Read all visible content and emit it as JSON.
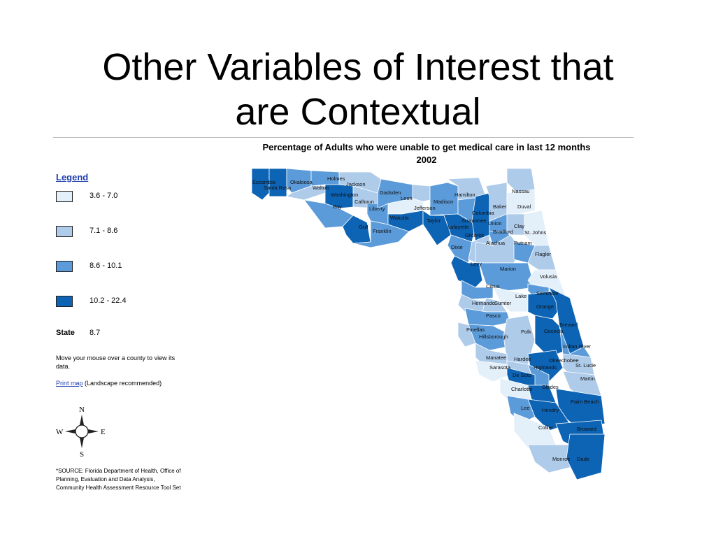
{
  "slide": {
    "title_lines": [
      "Other Variables of Interest that",
      "are Contextual"
    ]
  },
  "map": {
    "title_line1": "Percentage of Adults who were unable to get medical care in last 12 months",
    "title_line2": "2002"
  },
  "legend": {
    "heading": "Legend",
    "items": [
      {
        "label": "3.6 - 7.0",
        "color": "#e3eff9"
      },
      {
        "label": "7.1 - 8.6",
        "color": "#aecbea"
      },
      {
        "label": "8.6 - 10.1",
        "color": "#5b9bd9"
      },
      {
        "label": "10.2 - 22.4",
        "color": "#0d63b4"
      }
    ],
    "state_label": "State",
    "state_value": "8.7"
  },
  "hint": "Move your mouse over a county to view its data.",
  "print": {
    "link": "Print map",
    "note": "(Landscape recommended)"
  },
  "compass": {
    "n": "N",
    "s": "S",
    "e": "E",
    "w": "W"
  },
  "source": {
    "line1": "*SOURCE: Florida Department of Health, Office of",
    "line2": "Planning, Evaluation and Data Analysis,",
    "line3": "Community Health Assessment Resource Tool Set"
  },
  "counties": [
    {
      "name": "Escambia",
      "cls": 3
    },
    {
      "name": "Santa Rosa",
      "cls": 3
    },
    {
      "name": "Okaloosa",
      "cls": 2
    },
    {
      "name": "Walton",
      "cls": 1
    },
    {
      "name": "Holmes",
      "cls": 2
    },
    {
      "name": "Washington",
      "cls": 3
    },
    {
      "name": "Jackson",
      "cls": 1
    },
    {
      "name": "Bay",
      "cls": 2
    },
    {
      "name": "Calhoun",
      "cls": 1
    },
    {
      "name": "Gulf",
      "cls": 3
    },
    {
      "name": "Liberty",
      "cls": 2
    },
    {
      "name": "Gadsden",
      "cls": 2
    },
    {
      "name": "Franklin",
      "cls": 2
    },
    {
      "name": "Leon",
      "cls": 0
    },
    {
      "name": "Wakulla",
      "cls": 3
    },
    {
      "name": "Jefferson",
      "cls": 1
    },
    {
      "name": "Madison",
      "cls": 2
    },
    {
      "name": "Taylor",
      "cls": 3
    },
    {
      "name": "Hamilton",
      "cls": 1
    },
    {
      "name": "Suwannee",
      "cls": 2
    },
    {
      "name": "Lafayette",
      "cls": 3
    },
    {
      "name": "Columbia",
      "cls": 3
    },
    {
      "name": "Dixie",
      "cls": 2
    },
    {
      "name": "Gilchrist",
      "cls": 1
    },
    {
      "name": "Union",
      "cls": 2
    },
    {
      "name": "Baker",
      "cls": 1
    },
    {
      "name": "Bradford",
      "cls": 2
    },
    {
      "name": "Nassau",
      "cls": 1
    },
    {
      "name": "Duval",
      "cls": 0
    },
    {
      "name": "Clay",
      "cls": 1
    },
    {
      "name": "St. Johns",
      "cls": 0
    },
    {
      "name": "Alachua",
      "cls": 1
    },
    {
      "name": "Putnam",
      "cls": 2
    },
    {
      "name": "Flagler",
      "cls": 1
    },
    {
      "name": "Levy",
      "cls": 3
    },
    {
      "name": "Marion",
      "cls": 2
    },
    {
      "name": "Volusia",
      "cls": 0
    },
    {
      "name": "Citrus",
      "cls": 2
    },
    {
      "name": "Lake",
      "cls": 0
    },
    {
      "name": "Seminole",
      "cls": 2
    },
    {
      "name": "Hernando",
      "cls": 1
    },
    {
      "name": "Sumter",
      "cls": 1
    },
    {
      "name": "Orange",
      "cls": 3
    },
    {
      "name": "Brevard",
      "cls": 3
    },
    {
      "name": "Pasco",
      "cls": 2
    },
    {
      "name": "Pinellas",
      "cls": 1
    },
    {
      "name": "Hillsborough",
      "cls": 2
    },
    {
      "name": "Polk",
      "cls": 1
    },
    {
      "name": "Osceola",
      "cls": 3
    },
    {
      "name": "Indian River",
      "cls": 2
    },
    {
      "name": "Manatee",
      "cls": 1
    },
    {
      "name": "Hardee",
      "cls": 1
    },
    {
      "name": "Okeechobee",
      "cls": 3
    },
    {
      "name": "St. Lucie",
      "cls": 1
    },
    {
      "name": "Sarasota",
      "cls": 0
    },
    {
      "name": "Highlands",
      "cls": 2
    },
    {
      "name": "De Soto",
      "cls": 3
    },
    {
      "name": "Martin",
      "cls": 1
    },
    {
      "name": "Charlotte",
      "cls": 0
    },
    {
      "name": "Glades",
      "cls": 3
    },
    {
      "name": "Palm Beach",
      "cls": 3
    },
    {
      "name": "Lee",
      "cls": 2
    },
    {
      "name": "Hendry",
      "cls": 3
    },
    {
      "name": "Collier",
      "cls": 0
    },
    {
      "name": "Broward",
      "cls": 3
    },
    {
      "name": "Monroe",
      "cls": 1
    },
    {
      "name": "Dade",
      "cls": 3
    }
  ]
}
